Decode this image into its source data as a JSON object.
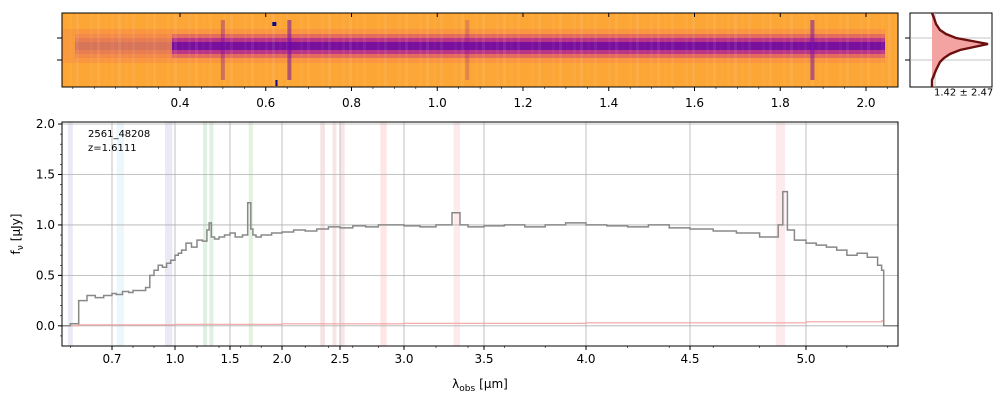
{
  "spectrum_2d": {
    "x_tick_labels": [
      "0.4",
      "0.6",
      "0.8",
      "1.0",
      "1.2",
      "1.4",
      "1.6",
      "1.8",
      "2.0"
    ],
    "x_ticks": [
      0.4,
      0.6,
      0.8,
      1.0,
      1.2,
      1.4,
      1.6,
      1.8,
      2.0
    ],
    "colors": {
      "background": "#fca636",
      "trace": "#6a00a8",
      "mid": "#e16462"
    }
  },
  "profile_panel": {
    "label": "1.42 ± 2.47",
    "colors": {
      "fill": "#f4a3a3",
      "line": "#6b0f0f",
      "grid": "#b0b0b0"
    }
  },
  "chart_data": {
    "type": "line",
    "object_id": "2561_48208",
    "redshift_label": "z=1.6111",
    "xlabel_main": "λ",
    "xlabel_sub": "obs",
    "xlabel_unit": "[μm]",
    "ylabel_main": "f",
    "ylabel_sub": "ν",
    "ylabel_unit": "[μJy]",
    "x_scale": "non-linear (upper axis: wavelength in 0.2 μm ticks)",
    "ylim": [
      -0.2,
      2.02
    ],
    "y_ticks": [
      0.0,
      0.5,
      1.0,
      1.5,
      2.0
    ],
    "y_tick_labels": [
      "0.0",
      "0.5",
      "1.0",
      "1.5",
      "2.0"
    ],
    "x_tick_labels": [
      "0.7",
      "1.0",
      "1.5",
      "2.0",
      "2.5",
      "3.0",
      "3.5",
      "4.0",
      "4.5",
      "5.0"
    ],
    "x_ticks": [
      0.7,
      1.0,
      1.5,
      2.0,
      2.5,
      3.0,
      3.5,
      4.0,
      4.5,
      5.0
    ],
    "xlim": [
      0.58,
      5.45
    ],
    "grid": true,
    "series": [
      {
        "role": "flux",
        "color": "#888888",
        "x": [
          0.58,
          0.6,
          0.62,
          0.64,
          0.66,
          0.68,
          0.7,
          0.72,
          0.75,
          0.78,
          0.8,
          0.83,
          0.86,
          0.88,
          0.9,
          0.92,
          0.94,
          0.96,
          0.98,
          1.0,
          1.03,
          1.06,
          1.1,
          1.15,
          1.2,
          1.25,
          1.29,
          1.31,
          1.33,
          1.36,
          1.4,
          1.45,
          1.5,
          1.55,
          1.62,
          1.67,
          1.7,
          1.72,
          1.75,
          1.8,
          1.9,
          2.0,
          2.1,
          2.2,
          2.3,
          2.4,
          2.5,
          2.6,
          2.7,
          2.8,
          2.9,
          3.0,
          3.1,
          3.2,
          3.3,
          3.35,
          3.4,
          3.5,
          3.6,
          3.7,
          3.8,
          3.9,
          4.0,
          4.1,
          4.2,
          4.3,
          4.4,
          4.5,
          4.6,
          4.7,
          4.8,
          4.88,
          4.9,
          4.92,
          4.95,
          5.0,
          5.05,
          5.1,
          5.15,
          5.2,
          5.25,
          5.3,
          5.35,
          5.37,
          5.38,
          5.45
        ],
        "y": [
          0.0,
          0.02,
          0.25,
          0.3,
          0.28,
          0.3,
          0.32,
          0.31,
          0.34,
          0.33,
          0.35,
          0.35,
          0.38,
          0.5,
          0.55,
          0.6,
          0.58,
          0.62,
          0.65,
          0.7,
          0.72,
          0.75,
          0.82,
          0.78,
          0.85,
          0.84,
          0.95,
          1.02,
          0.88,
          0.86,
          0.88,
          0.9,
          0.92,
          0.88,
          0.9,
          1.22,
          0.96,
          0.9,
          0.88,
          0.9,
          0.92,
          0.93,
          0.95,
          0.94,
          0.96,
          0.98,
          0.97,
          0.99,
          0.98,
          1.0,
          1.0,
          0.99,
          0.98,
          1.0,
          1.12,
          1.0,
          0.98,
          0.99,
          1.0,
          0.98,
          1.0,
          1.02,
          1.0,
          0.99,
          0.98,
          1.0,
          0.97,
          0.96,
          0.94,
          0.92,
          0.88,
          1.0,
          1.33,
          0.95,
          0.85,
          0.82,
          0.8,
          0.78,
          0.75,
          0.7,
          0.72,
          0.68,
          0.6,
          0.55,
          0.0,
          0.0
        ]
      },
      {
        "role": "uncertainty",
        "color": "#f4a3a3",
        "x": [
          0.58,
          0.62,
          1.0,
          2.0,
          3.0,
          4.0,
          5.0,
          5.37,
          5.38,
          5.45
        ],
        "y": [
          0.0,
          0.01,
          0.015,
          0.02,
          0.025,
          0.03,
          0.04,
          0.05,
          0.0,
          0.0
        ]
      }
    ],
    "line_bands": [
      {
        "x": 0.6,
        "width": 0.012,
        "color": "#e6e6f5"
      },
      {
        "x": 0.74,
        "width": 0.035,
        "color": "#e8f6fc"
      },
      {
        "x": 0.97,
        "width": 0.035,
        "color": "#e6e6f5"
      },
      {
        "x": 1.27,
        "width": 0.03,
        "color": "#d9eedd"
      },
      {
        "x": 1.33,
        "width": 0.035,
        "color": "#d9eedd"
      },
      {
        "x": 1.7,
        "width": 0.04,
        "color": "#dff0dc"
      },
      {
        "x": 2.35,
        "width": 0.04,
        "color": "#f5dede"
      },
      {
        "x": 2.45,
        "width": 0.03,
        "color": "#f8e0e0"
      },
      {
        "x": 2.52,
        "width": 0.03,
        "color": "#f8e0e0"
      },
      {
        "x": 2.84,
        "width": 0.05,
        "color": "#fde2e2"
      },
      {
        "x": 3.33,
        "width": 0.04,
        "color": "#fde6ea"
      },
      {
        "x": 4.89,
        "width": 0.04,
        "color": "#fde6ea"
      }
    ]
  }
}
